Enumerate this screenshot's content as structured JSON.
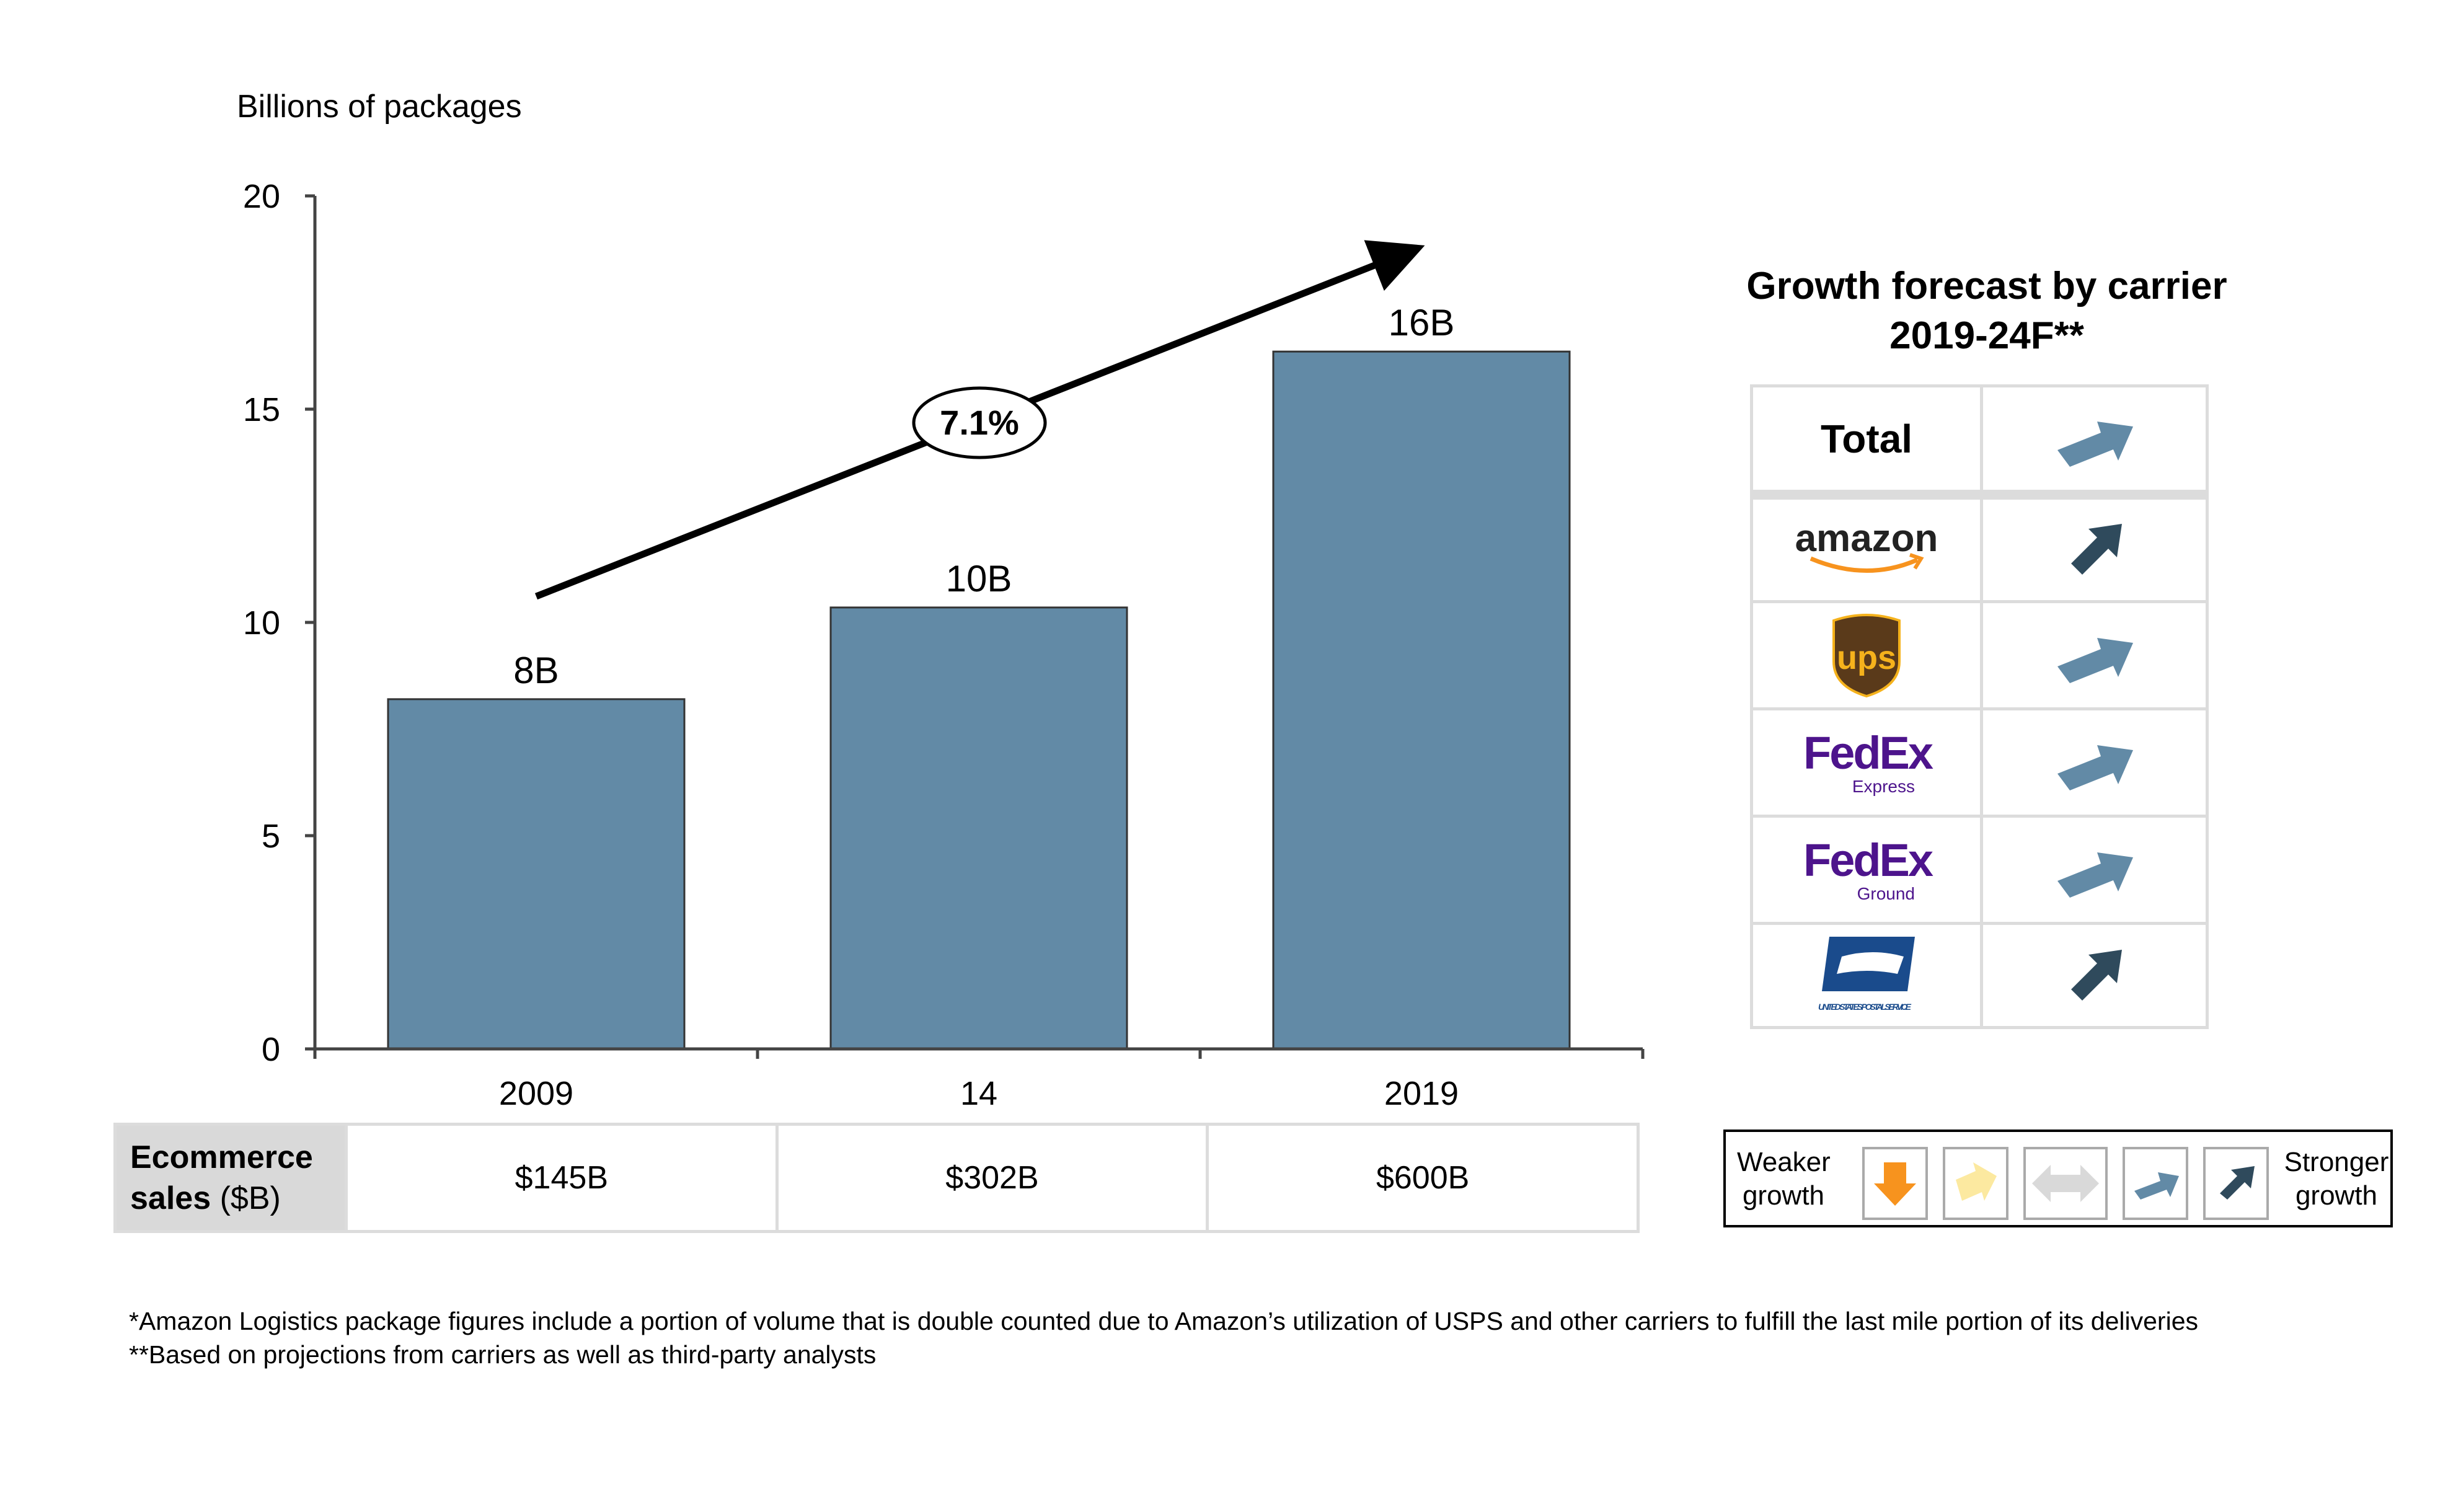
{
  "chart_data": {
    "type": "bar",
    "ylabel": "Billions of packages",
    "ylim": [
      0,
      20
    ],
    "yticks": [
      "0",
      "5",
      "10",
      "15",
      "20"
    ],
    "categories": [
      "2009",
      "14",
      "2019"
    ],
    "values": [
      8.2,
      10.35,
      16.35
    ],
    "data_labels": [
      "8B",
      "10B",
      "16B"
    ],
    "bar_color": "#628aa6",
    "cagr_label": "7.1%"
  },
  "ecommerce": {
    "header_bold": "Ecommerce",
    "header_bold2": "sales",
    "header_unit": "($B)",
    "values": [
      "$145B",
      "$302B",
      "$600B"
    ]
  },
  "forecast": {
    "title_line1": "Growth forecast by carrier",
    "title_line2": "2019-24F**",
    "rows": [
      {
        "label": "Total",
        "logo": "text",
        "arrow": "medium-up"
      },
      {
        "label": "amazon",
        "logo": "amazon-logo",
        "arrow": "strong-up"
      },
      {
        "label": "ups",
        "logo": "ups-logo",
        "arrow": "medium-up"
      },
      {
        "label": "FedEx",
        "sublabel": "Express",
        "logo": "fedex-express-logo",
        "arrow": "medium-up"
      },
      {
        "label": "FedEx",
        "sublabel": "Ground",
        "logo": "fedex-ground-logo",
        "arrow": "medium-up"
      },
      {
        "label": "UNITED STATES POSTAL SERVICE",
        "logo": "usps-logo",
        "arrow": "strong-up"
      }
    ]
  },
  "legend": {
    "weaker_line1": "Weaker",
    "weaker_line2": "growth",
    "stronger_line1": "Stronger",
    "stronger_line2": "growth",
    "colors": {
      "down": "#f7931e",
      "slight": "#fce9a0",
      "flat": "#d9d9d9",
      "medium": "#628aa6",
      "strong": "#2f4a5c"
    }
  },
  "footnotes": [
    "*Amazon Logistics package figures include a portion of volume that is double counted due to Amazon’s utilization of USPS and other carriers to fulfill the last mile portion of its deliveries",
    "**Based on projections from carriers as well as third-party analysts"
  ]
}
